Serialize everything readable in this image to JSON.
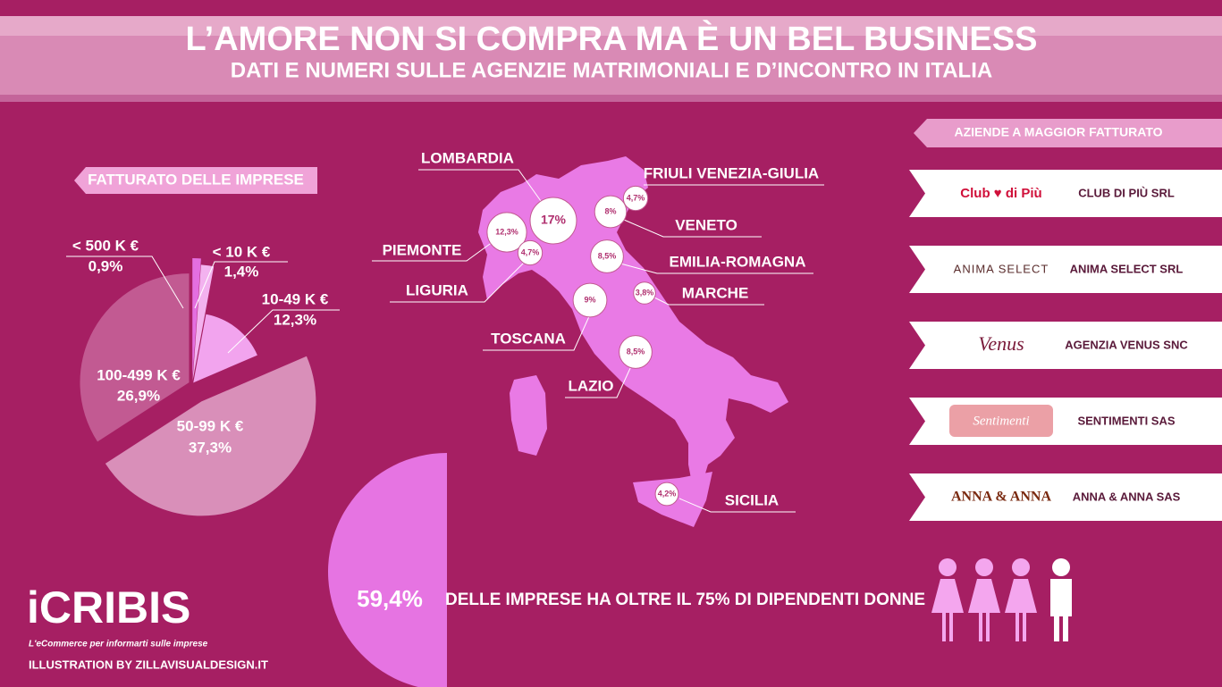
{
  "header": {
    "title": "L’AMORE NON SI COMPRA MA È UN BEL BUSINESS",
    "subtitle": "DATI E NUMERI SULLE AGENZIE MATRIMONIALI E D’INCONTRO IN ITALIA"
  },
  "chart_data": {
    "type": "pie",
    "title": "FATTURATO DELLE IMPRESE",
    "categories": [
      "< 500 K €",
      "< 10 K €",
      "10-49 K €",
      "50-99 K €",
      "100-499 K €"
    ],
    "values": [
      0.9,
      1.4,
      12.3,
      37.3,
      26.9
    ],
    "value_labels": [
      "0,9%",
      "1,4%",
      "12,3%",
      "37,3%",
      "26,9%"
    ],
    "colors": [
      "#e46fe0",
      "#f3b2ef",
      "#f2a4ee",
      "#d98fb9",
      "#c25a92"
    ]
  },
  "map": {
    "color": "#e97ae5",
    "regions": [
      {
        "name": "LOMBARDIA",
        "value": 17,
        "value_label": "17%"
      },
      {
        "name": "PIEMONTE",
        "value": 12.3,
        "value_label": "12,3%"
      },
      {
        "name": "LIGURIA",
        "value": 4.7,
        "value_label": "4,7%"
      },
      {
        "name": "FRIULI VENEZIA-GIULIA",
        "value": 4.7,
        "value_label": "4,7%"
      },
      {
        "name": "VENETO",
        "value": 8,
        "value_label": "8%"
      },
      {
        "name": "EMILIA-ROMAGNA",
        "value": 8.5,
        "value_label": "8,5%"
      },
      {
        "name": "MARCHE",
        "value": 3.8,
        "value_label": "3,8%"
      },
      {
        "name": "TOSCANA",
        "value": 9,
        "value_label": "9%"
      },
      {
        "name": "LAZIO",
        "value": 8.5,
        "value_label": "8,5%"
      },
      {
        "name": "SICILIA",
        "value": 4.2,
        "value_label": "4,2%"
      }
    ]
  },
  "companies": {
    "title": "AZIENDE A MAGGIOR FATTURATO",
    "items": [
      {
        "logo": "Club ♥ di Più",
        "name": "CLUB DI PIÙ SRL"
      },
      {
        "logo": "ANIMA SELECT",
        "name": "ANIMA SELECT SRL"
      },
      {
        "logo": "Venus",
        "name": "AGENZIA VENUS SNC"
      },
      {
        "logo": "Sentimenti",
        "name": "SENTIMENTI SAS"
      },
      {
        "logo": "ANNA & ANNA",
        "name": "ANNA & ANNA SAS"
      }
    ]
  },
  "stat": {
    "value": 59.4,
    "value_label": "59,4%",
    "text": "DELLE IMPRESE HA OLTRE IL 75% DI DIPENDENTI DONNE"
  },
  "footer": {
    "brand": "iCRIBIS",
    "tagline": "L'eCommerce per informarti sulle imprese",
    "credit": "ILLUSTRATION BY ZILLAVISUALDESIGN.IT"
  }
}
